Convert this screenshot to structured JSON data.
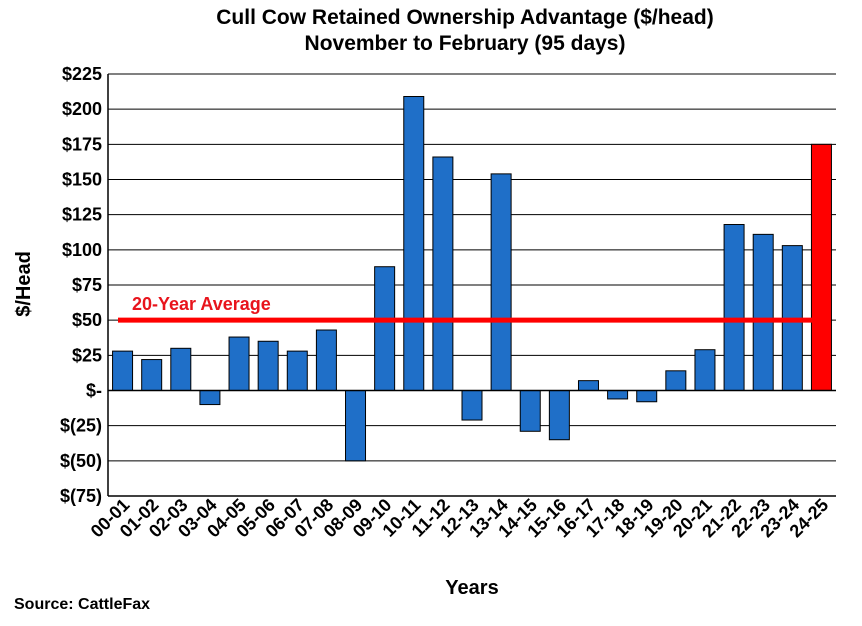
{
  "chart_data": {
    "type": "bar",
    "title": "Cull Cow Retained Ownership Advantage ($/head)",
    "subtitle": "November to February (95 days)",
    "xlabel": "Years",
    "ylabel": "$/Head",
    "ylim": [
      -75,
      225
    ],
    "yticks": [
      225,
      200,
      175,
      150,
      125,
      100,
      75,
      50,
      25,
      0,
      -25,
      -50,
      -75
    ],
    "ytick_labels": [
      "$225",
      "$200",
      "$175",
      "$150",
      "$125",
      "$100",
      "$75",
      "$50",
      "$25",
      "$-",
      "$(25)",
      "$(50)",
      "$(75)"
    ],
    "grid": true,
    "categories": [
      "00-01",
      "01-02",
      "02-03",
      "03-04",
      "04-05",
      "05-06",
      "06-07",
      "07-08",
      "08-09",
      "09-10",
      "10-11",
      "11-12",
      "12-13",
      "13-14",
      "14-15",
      "15-16",
      "16-17",
      "17-18",
      "18-19",
      "19-20",
      "20-21",
      "21-22",
      "22-23",
      "23-24",
      "24-25"
    ],
    "values": [
      28,
      22,
      30,
      -10,
      38,
      35,
      28,
      43,
      -50,
      88,
      209,
      166,
      -21,
      154,
      -29,
      -35,
      7,
      -6,
      -8,
      14,
      29,
      118,
      111,
      103,
      175
    ],
    "bar_color": "#1f6fc8",
    "highlight_color": "#ff0000",
    "highlight_index": 24,
    "reference_line": {
      "label": "20-Year Average",
      "value": 50,
      "color": "#ff0000"
    }
  },
  "source": "Source: CattleFax"
}
